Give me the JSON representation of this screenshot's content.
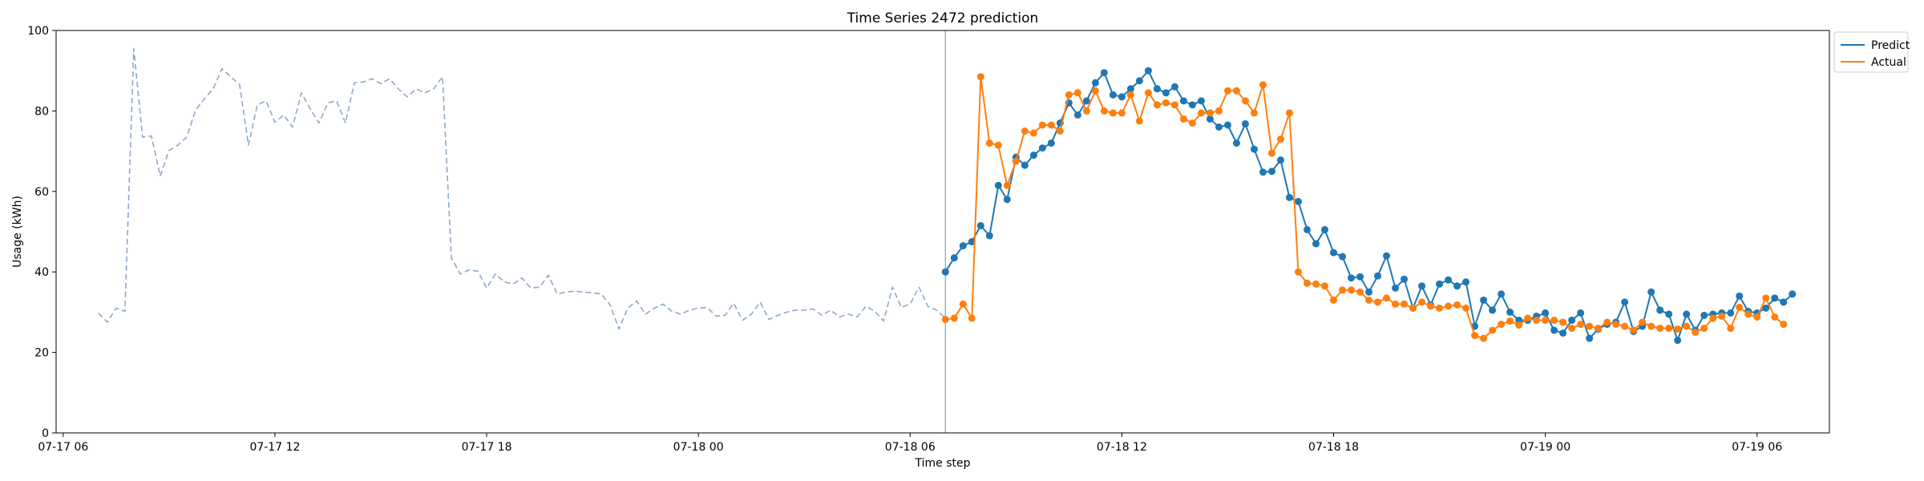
{
  "chart_data": {
    "type": "line",
    "title": "Time Series 2472 prediction",
    "xlabel": "Time step",
    "ylabel": "Usage (kWh)",
    "ylim": [
      0,
      100
    ],
    "yticks": [
      0,
      20,
      40,
      60,
      80,
      100
    ],
    "xlim": [
      "2024-07-17 05:48",
      "2024-07-19 08:03"
    ],
    "xticks": [
      {
        "value": "2024-07-17 06:00",
        "label": "07-17 06"
      },
      {
        "value": "2024-07-17 12:00",
        "label": "07-17 12"
      },
      {
        "value": "2024-07-17 18:00",
        "label": "07-17 18"
      },
      {
        "value": "2024-07-18 00:00",
        "label": "07-18 00"
      },
      {
        "value": "2024-07-18 06:00",
        "label": "07-18 06"
      },
      {
        "value": "2024-07-18 12:00",
        "label": "07-18 12"
      },
      {
        "value": "2024-07-18 18:00",
        "label": "07-18 18"
      },
      {
        "value": "2024-07-19 00:00",
        "label": "07-19 00"
      },
      {
        "value": "2024-07-19 06:00",
        "label": "07-19 06"
      }
    ],
    "interval_minutes": 15,
    "forecast_start": "2024-07-18 07:00",
    "grid": false,
    "legend_position": "upper-right-outside",
    "series": [
      {
        "name": "",
        "role": "history",
        "color": "#8fa8c8",
        "style": "dashed",
        "start": "2024-07-17 07:00",
        "values": [
          29.8,
          27.5,
          31.0,
          30.2,
          95.5,
          73.5,
          73.8,
          63.8,
          70.2,
          71.5,
          73.5,
          80.2,
          83.0,
          85.5,
          90.5,
          88.5,
          86.5,
          71.5,
          81.5,
          82.5,
          77.2,
          79.0,
          76.0,
          84.5,
          80.5,
          77.0,
          82.0,
          82.5,
          77.0,
          87.0,
          87.2,
          88.0,
          86.8,
          88.0,
          85.5,
          83.5,
          85.5,
          84.5,
          85.5,
          88.5,
          43.5,
          39.5,
          40.5,
          40.2,
          36.0,
          39.5,
          37.5,
          37.0,
          38.5,
          36.0,
          36.2,
          39.2,
          34.5,
          35.0,
          35.2,
          35.0,
          34.8,
          34.5,
          31.8,
          25.8,
          31.0,
          32.8,
          29.5,
          31.0,
          32.0,
          30.2,
          29.5,
          30.5,
          31.0,
          31.2,
          29.0,
          29.2,
          32.2,
          28.0,
          29.5,
          32.5,
          28.2,
          29.2,
          30.0,
          30.5,
          30.5,
          30.8,
          29.2,
          30.5,
          28.8,
          29.5,
          28.8,
          31.5,
          30.2,
          27.8,
          36.2,
          31.2,
          32.0,
          36.2,
          31.5,
          30.5,
          28.5
        ]
      },
      {
        "name": "Predict",
        "role": "forecast",
        "color": "#1f77b4",
        "style": "solid",
        "start": "2024-07-18 07:00",
        "values": [
          40.0,
          43.5,
          46.5,
          47.5,
          51.5,
          49.0,
          61.5,
          58.0,
          68.5,
          66.5,
          69.0,
          70.8,
          72.0,
          77.0,
          82.0,
          79.0,
          82.5,
          87.0,
          89.5,
          84.0,
          83.5,
          85.5,
          87.5,
          90.0,
          85.5,
          84.5,
          86.0,
          82.5,
          81.5,
          82.5,
          78.0,
          76.0,
          76.5,
          72.0,
          76.8,
          70.5,
          64.8,
          65.0,
          67.8,
          58.5,
          57.5,
          50.5,
          47.0,
          50.5,
          44.8,
          43.8,
          38.5,
          38.8,
          35.0,
          39.0,
          44.0,
          36.0,
          38.2,
          31.0,
          36.5,
          31.8,
          37.0,
          38.0,
          36.5,
          37.5,
          26.5,
          33.0,
          30.5,
          34.5,
          30.0,
          28.0,
          28.0,
          29.0,
          29.8,
          25.5,
          24.8,
          28.0,
          29.8,
          23.5,
          25.8,
          27.0,
          27.5,
          32.5,
          25.2,
          26.5,
          35.0,
          30.5,
          29.5,
          23.0,
          29.5,
          25.5,
          29.2,
          29.5,
          29.8,
          29.8,
          34.0,
          30.2,
          29.8,
          31.0,
          33.5,
          32.5,
          34.5
        ]
      },
      {
        "name": "Actual",
        "role": "actual",
        "color": "#ff7f0e",
        "style": "solid",
        "start": "2024-07-18 07:00",
        "values": [
          28.2,
          28.5,
          32.0,
          28.5,
          88.5,
          72.0,
          71.5,
          61.5,
          67.5,
          75.0,
          74.5,
          76.5,
          76.5,
          75.0,
          84.0,
          84.5,
          80.0,
          85.0,
          80.0,
          79.5,
          79.5,
          84.0,
          77.5,
          84.5,
          81.5,
          82.0,
          81.5,
          78.0,
          77.0,
          79.5,
          79.5,
          80.0,
          85.0,
          85.0,
          82.5,
          79.5,
          86.5,
          69.5,
          73.0,
          79.5,
          40.0,
          37.2,
          37.0,
          36.5,
          33.0,
          35.5,
          35.5,
          35.0,
          33.0,
          32.5,
          33.5,
          32.0,
          32.0,
          31.0,
          32.5,
          31.5,
          31.0,
          31.5,
          31.8,
          31.0,
          24.2,
          23.5,
          25.5,
          27.0,
          27.8,
          26.8,
          28.5,
          28.0,
          28.0,
          28.0,
          27.5,
          26.0,
          27.0,
          26.5,
          26.0,
          27.5,
          27.0,
          26.5,
          25.5,
          27.5,
          26.5,
          26.0,
          26.0,
          25.8,
          26.5,
          25.0,
          26.0,
          28.5,
          29.0,
          26.0,
          31.2,
          29.5,
          28.8,
          33.5,
          28.8,
          27.0
        ]
      }
    ]
  }
}
